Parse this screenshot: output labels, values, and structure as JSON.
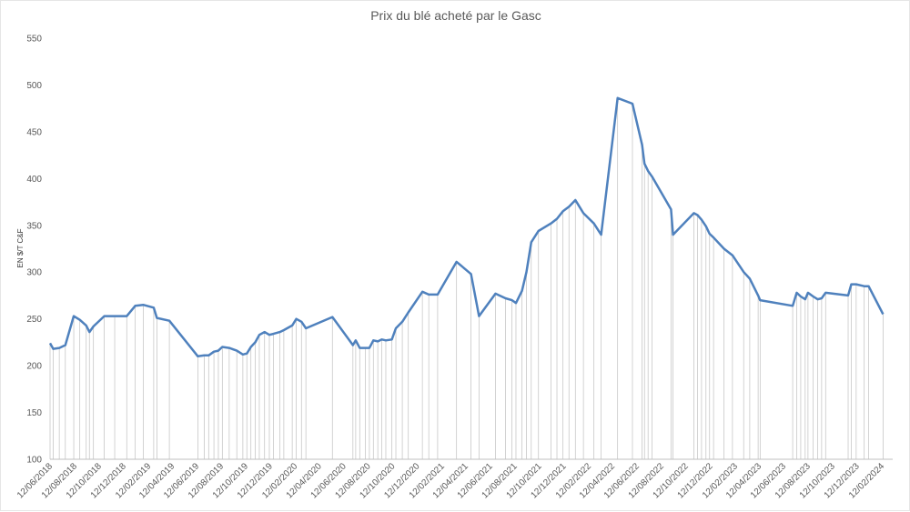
{
  "chart_data": {
    "type": "line",
    "title": "Prix du blé acheté par le Gasc",
    "xlabel": "",
    "ylabel": "EN $/T C&F",
    "ylim": [
      100,
      550
    ],
    "y_ticks": [
      "100",
      "150",
      "200",
      "250",
      "300",
      "350",
      "400",
      "450",
      "500",
      "550"
    ],
    "x_tick_labels": [
      "12/06/2018",
      "12/08/2018",
      "12/10/2018",
      "12/12/2018",
      "12/02/2019",
      "12/04/2019",
      "12/06/2019",
      "12/08/2019",
      "12/10/2019",
      "12/12/2019",
      "12/02/2020",
      "12/04/2020",
      "12/06/2020",
      "12/08/2020",
      "12/10/2020",
      "12/12/2020",
      "12/02/2021",
      "12/04/2021",
      "12/06/2021",
      "12/08/2021",
      "12/10/2021",
      "12/12/2021",
      "12/02/2022",
      "12/04/2022",
      "12/06/2022",
      "12/08/2022",
      "12/10/2022",
      "12/12/2022",
      "12/02/2023",
      "12/04/2023",
      "12/06/2023",
      "12/08/2023",
      "12/10/2023",
      "12/12/2023",
      "12/02/2024"
    ],
    "x_range": [
      "2018-06-12",
      "2024-03-10"
    ],
    "grid": false,
    "drop_lines": true,
    "line_color": "#4f81bd",
    "drop_line_color": "#c8c8c8",
    "series": [
      {
        "points": [
          [
            "2018-06-12",
            224
          ],
          [
            "2018-06-20",
            218
          ],
          [
            "2018-07-05",
            219
          ],
          [
            "2018-07-20",
            222
          ],
          [
            "2018-08-10",
            253
          ],
          [
            "2018-08-25",
            249
          ],
          [
            "2018-09-10",
            243
          ],
          [
            "2018-09-18",
            236
          ],
          [
            "2018-09-28",
            242
          ],
          [
            "2018-10-25",
            253
          ],
          [
            "2018-11-20",
            253
          ],
          [
            "2018-12-20",
            253
          ],
          [
            "2019-01-10",
            264
          ],
          [
            "2019-01-30",
            265
          ],
          [
            "2019-02-25",
            262
          ],
          [
            "2019-03-05",
            251
          ],
          [
            "2019-04-05",
            248
          ],
          [
            "2019-06-15",
            210
          ],
          [
            "2019-07-01",
            211
          ],
          [
            "2019-07-12",
            211
          ],
          [
            "2019-07-25",
            215
          ],
          [
            "2019-08-05",
            216
          ],
          [
            "2019-08-15",
            220
          ],
          [
            "2019-09-01",
            219
          ],
          [
            "2019-09-20",
            216
          ],
          [
            "2019-10-05",
            212
          ],
          [
            "2019-10-15",
            213
          ],
          [
            "2019-10-25",
            220
          ],
          [
            "2019-11-05",
            225
          ],
          [
            "2019-11-15",
            233
          ],
          [
            "2019-11-28",
            236
          ],
          [
            "2019-12-10",
            233
          ],
          [
            "2019-12-20",
            234
          ],
          [
            "2020-01-05",
            236
          ],
          [
            "2020-01-15",
            238
          ],
          [
            "2020-02-05",
            243
          ],
          [
            "2020-02-15",
            250
          ],
          [
            "2020-02-28",
            247
          ],
          [
            "2020-03-10",
            240
          ],
          [
            "2020-05-15",
            252
          ],
          [
            "2020-07-05",
            222
          ],
          [
            "2020-07-12",
            227
          ],
          [
            "2020-07-22",
            219
          ],
          [
            "2020-08-05",
            219
          ],
          [
            "2020-08-15",
            219
          ],
          [
            "2020-08-25",
            227
          ],
          [
            "2020-09-05",
            226
          ],
          [
            "2020-09-15",
            228
          ],
          [
            "2020-09-25",
            227
          ],
          [
            "2020-10-10",
            228
          ],
          [
            "2020-10-20",
            240
          ],
          [
            "2020-11-05",
            247
          ],
          [
            "2020-11-20",
            257
          ],
          [
            "2020-12-25",
            279
          ],
          [
            "2021-01-10",
            276
          ],
          [
            "2021-02-01",
            276
          ],
          [
            "2021-03-20",
            311
          ],
          [
            "2021-04-25",
            298
          ],
          [
            "2021-05-15",
            253
          ],
          [
            "2021-06-25",
            277
          ],
          [
            "2021-07-20",
            272
          ],
          [
            "2021-08-05",
            270
          ],
          [
            "2021-08-15",
            267
          ],
          [
            "2021-08-30",
            280
          ],
          [
            "2021-09-10",
            300
          ],
          [
            "2021-09-22",
            332
          ],
          [
            "2021-10-10",
            344
          ],
          [
            "2021-11-10",
            352
          ],
          [
            "2021-11-25",
            357
          ],
          [
            "2021-12-10",
            365
          ],
          [
            "2021-12-25",
            370
          ],
          [
            "2022-01-10",
            377
          ],
          [
            "2022-01-30",
            363
          ],
          [
            "2022-02-25",
            352
          ],
          [
            "2022-03-15",
            340
          ],
          [
            "2022-04-25",
            486
          ],
          [
            "2022-06-01",
            480
          ],
          [
            "2022-06-25",
            436
          ],
          [
            "2022-07-01",
            416
          ],
          [
            "2022-07-10",
            408
          ],
          [
            "2022-07-20",
            402
          ],
          [
            "2022-09-05",
            367
          ],
          [
            "2022-09-10",
            340
          ],
          [
            "2022-11-01",
            363
          ],
          [
            "2022-11-10",
            361
          ],
          [
            "2022-11-20",
            356
          ],
          [
            "2022-12-01",
            349
          ],
          [
            "2022-12-10",
            341
          ],
          [
            "2022-12-20",
            337
          ],
          [
            "2023-01-15",
            325
          ],
          [
            "2023-02-05",
            318
          ],
          [
            "2023-03-05",
            300
          ],
          [
            "2023-03-20",
            293
          ],
          [
            "2023-04-10",
            275
          ],
          [
            "2023-04-15",
            270
          ],
          [
            "2023-07-05",
            264
          ],
          [
            "2023-07-15",
            278
          ],
          [
            "2023-07-25",
            274
          ],
          [
            "2023-08-05",
            271
          ],
          [
            "2023-08-12",
            278
          ],
          [
            "2023-08-25",
            274
          ],
          [
            "2023-09-05",
            271
          ],
          [
            "2023-09-15",
            272
          ],
          [
            "2023-09-25",
            278
          ],
          [
            "2023-11-20",
            275
          ],
          [
            "2023-11-28",
            287
          ],
          [
            "2023-12-10",
            287
          ],
          [
            "2023-12-30",
            285
          ],
          [
            "2024-01-10",
            285
          ],
          [
            "2024-02-15",
            255
          ]
        ]
      }
    ]
  }
}
